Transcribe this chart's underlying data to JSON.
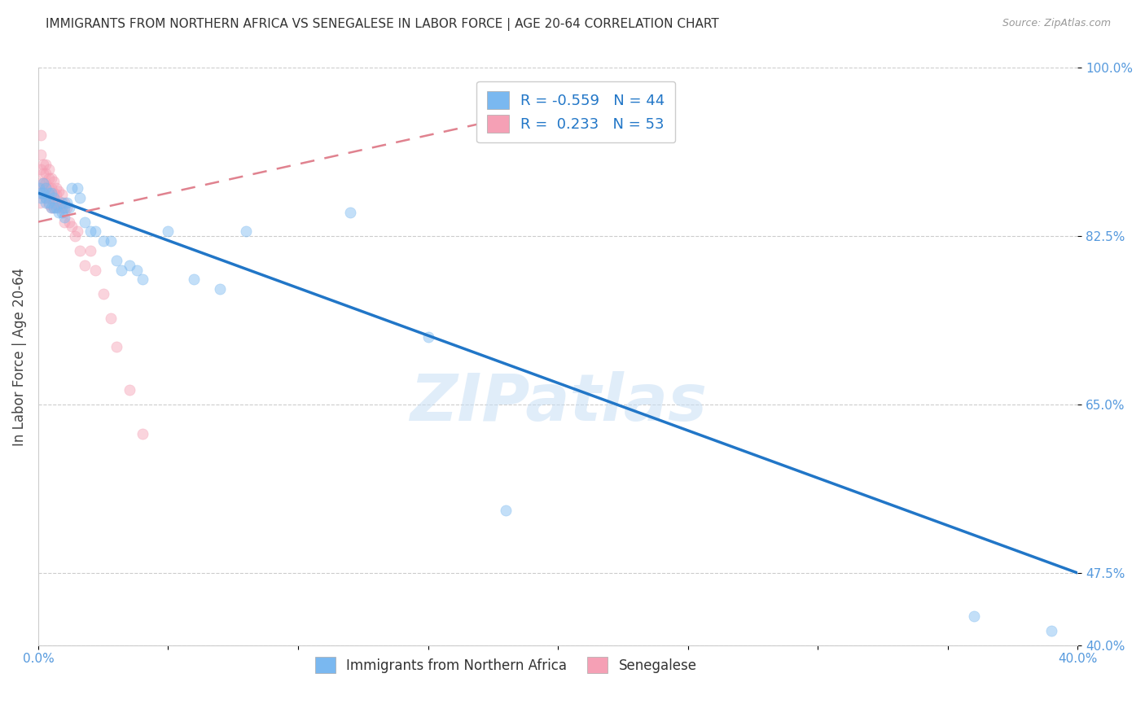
{
  "title": "IMMIGRANTS FROM NORTHERN AFRICA VS SENEGALESE IN LABOR FORCE | AGE 20-64 CORRELATION CHART",
  "source": "Source: ZipAtlas.com",
  "ylabel": "In Labor Force | Age 20-64",
  "blue_label": "Immigrants from Northern Africa",
  "pink_label": "Senegalese",
  "blue_R": -0.559,
  "blue_N": 44,
  "pink_R": 0.233,
  "pink_N": 53,
  "xmin": 0.0,
  "xmax": 0.4,
  "ymin": 0.4,
  "ymax": 1.0,
  "yticks": [
    0.4,
    0.475,
    0.65,
    0.825,
    1.0
  ],
  "ytick_labels": [
    "40.0%",
    "47.5%",
    "65.0%",
    "82.5%",
    "100.0%"
  ],
  "xticks": [
    0.0,
    0.05,
    0.1,
    0.15,
    0.2,
    0.25,
    0.3,
    0.35,
    0.4
  ],
  "xtick_labels": [
    "0.0%",
    "",
    "",
    "",
    "",
    "",
    "",
    "",
    "40.0%"
  ],
  "blue_scatter_x": [
    0.0005,
    0.001,
    0.001,
    0.002,
    0.002,
    0.003,
    0.003,
    0.003,
    0.004,
    0.004,
    0.005,
    0.005,
    0.006,
    0.006,
    0.007,
    0.008,
    0.009,
    0.009,
    0.01,
    0.01,
    0.011,
    0.012,
    0.013,
    0.015,
    0.016,
    0.018,
    0.02,
    0.022,
    0.025,
    0.028,
    0.03,
    0.032,
    0.035,
    0.038,
    0.04,
    0.05,
    0.06,
    0.07,
    0.08,
    0.12,
    0.15,
    0.18,
    0.36,
    0.39
  ],
  "blue_scatter_y": [
    0.875,
    0.87,
    0.865,
    0.88,
    0.87,
    0.875,
    0.865,
    0.86,
    0.87,
    0.86,
    0.87,
    0.855,
    0.865,
    0.855,
    0.855,
    0.85,
    0.86,
    0.85,
    0.855,
    0.845,
    0.86,
    0.855,
    0.875,
    0.875,
    0.865,
    0.84,
    0.83,
    0.83,
    0.82,
    0.82,
    0.8,
    0.79,
    0.795,
    0.79,
    0.78,
    0.83,
    0.78,
    0.77,
    0.83,
    0.85,
    0.72,
    0.54,
    0.43,
    0.415
  ],
  "pink_scatter_x": [
    0.0002,
    0.0004,
    0.0006,
    0.001,
    0.001,
    0.001,
    0.002,
    0.002,
    0.002,
    0.002,
    0.003,
    0.003,
    0.003,
    0.003,
    0.003,
    0.004,
    0.004,
    0.004,
    0.004,
    0.004,
    0.005,
    0.005,
    0.005,
    0.005,
    0.006,
    0.006,
    0.006,
    0.006,
    0.007,
    0.007,
    0.007,
    0.008,
    0.008,
    0.008,
    0.009,
    0.009,
    0.01,
    0.01,
    0.01,
    0.011,
    0.012,
    0.013,
    0.014,
    0.015,
    0.016,
    0.018,
    0.02,
    0.022,
    0.025,
    0.028,
    0.03,
    0.035,
    0.04
  ],
  "pink_scatter_y": [
    0.87,
    0.88,
    0.86,
    0.93,
    0.91,
    0.895,
    0.9,
    0.89,
    0.88,
    0.87,
    0.9,
    0.89,
    0.88,
    0.875,
    0.865,
    0.895,
    0.885,
    0.875,
    0.865,
    0.858,
    0.885,
    0.875,
    0.865,
    0.855,
    0.882,
    0.87,
    0.862,
    0.855,
    0.875,
    0.868,
    0.858,
    0.872,
    0.862,
    0.855,
    0.868,
    0.855,
    0.86,
    0.85,
    0.84,
    0.855,
    0.84,
    0.835,
    0.825,
    0.83,
    0.81,
    0.795,
    0.81,
    0.79,
    0.765,
    0.74,
    0.71,
    0.665,
    0.62
  ],
  "blue_line_x0": 0.0,
  "blue_line_y0": 0.87,
  "blue_line_x1": 0.4,
  "blue_line_y1": 0.475,
  "pink_line_x0": 0.0,
  "pink_line_y0": 0.84,
  "pink_line_x1": 0.2,
  "pink_line_y1": 0.96,
  "blue_color": "#7ab8f0",
  "pink_color": "#f5a0b5",
  "blue_line_color": "#2176c7",
  "pink_line_color": "#e0828f",
  "axis_color": "#5599dd",
  "title_color": "#333333",
  "background_color": "#ffffff",
  "marker_size": 90,
  "marker_alpha": 0.45
}
